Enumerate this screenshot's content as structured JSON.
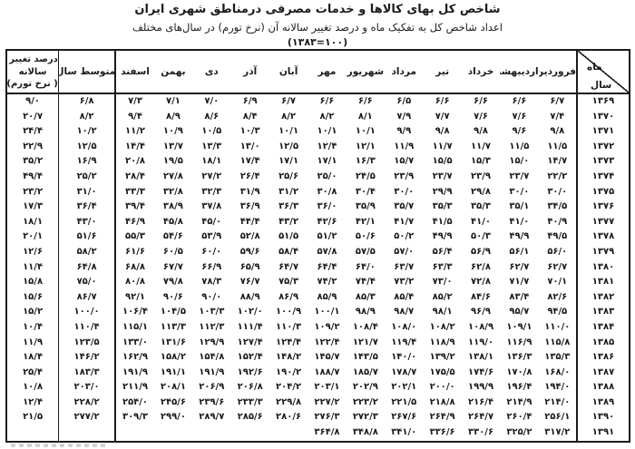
{
  "title": {
    "line1": "شاخص کل بهای کالاها و خدمات مصرفی درمناطق شهری ایران",
    "line2": "اعداد شاخص کل به تفکیک ماه و درصد تغییر سالانه آن (نرخ تورم) در سال‌های مختلف",
    "line3": "(۱۳۸۳=۱۰۰)"
  },
  "table": {
    "corner": {
      "month_label": "ماه",
      "year_label": "سال"
    },
    "months": [
      "فروردین",
      "اردیبهشت",
      "خرداد",
      "تیر",
      "مرداد",
      "شهریور",
      "مهر",
      "آبان",
      "آذر",
      "دی",
      "بهمن",
      "اسفند"
    ],
    "avg_header": "متوسط سال",
    "pct_header": {
      "line1": "درصد تغییر",
      "star": "*",
      "line2": "سالانه",
      "line3": "( نرخ تورم)"
    },
    "rows": [
      {
        "year": "۱۳۶۹",
        "months": [
          "۶/۷",
          "۶/۶",
          "۶/۶",
          "۶/۶",
          "۶/۵",
          "۶/۶",
          "۶/۶",
          "۶/۷",
          "۶/۹",
          "۷/۰",
          "۷/۱",
          "۷/۳"
        ],
        "avg": "۶/۸",
        "pct": "۹/۰"
      },
      {
        "year": "۱۳۷۰",
        "months": [
          "۷/۴",
          "۷/۶",
          "۷/۶",
          "۷/۷",
          "۷/۹",
          "۸/۱",
          "۸/۲",
          "۸/۲",
          "۸/۴",
          "۸/۶",
          "۸/۹",
          "۹/۴"
        ],
        "avg": "۸/۲",
        "pct": "۲۰/۷"
      },
      {
        "year": "۱۳۷۱",
        "months": [
          "۹/۸",
          "۹/۶",
          "۹/۸",
          "۹/۸",
          "۹/۹",
          "۱۰/۱",
          "۱۰/۱",
          "۱۰/۱",
          "۱۰/۳",
          "۱۰/۵",
          "۱۰/۹",
          "۱۱/۲"
        ],
        "avg": "۱۰/۲",
        "pct": "۲۴/۴"
      },
      {
        "year": "۱۳۷۲",
        "months": [
          "۱۱/۵",
          "۱۱/۵",
          "۱۱/۷",
          "۱۱/۷",
          "۱۱/۹",
          "۱۲/۱",
          "۱۲/۴",
          "۱۲/۵",
          "۱۳/۰",
          "۱۳/۳",
          "۱۳/۷",
          "۱۴/۴"
        ],
        "avg": "۱۲/۵",
        "pct": "۲۲/۹"
      },
      {
        "year": "۱۳۷۳",
        "months": [
          "۱۴/۷",
          "۱۵/۰",
          "۱۵/۳",
          "۱۵/۵",
          "۱۵/۷",
          "۱۶/۳",
          "۱۷/۱",
          "۱۷/۱",
          "۱۷/۴",
          "۱۸/۱",
          "۱۹/۵",
          "۲۰/۸"
        ],
        "avg": "۱۶/۹",
        "pct": "۳۵/۲"
      },
      {
        "year": "۱۳۷۴",
        "months": [
          "۲۲/۲",
          "۲۳/۷",
          "۲۳/۹",
          "۲۳/۷",
          "۲۳/۹",
          "۲۴/۵",
          "۲۵/۰",
          "۲۵/۶",
          "۲۶/۴",
          "۲۷/۲",
          "۲۷/۸",
          "۲۸/۴"
        ],
        "avg": "۲۵/۲",
        "pct": "۴۹/۴"
      },
      {
        "year": "۱۳۷۵",
        "months": [
          "۳۰/۰",
          "۳۰/۰",
          "۲۹/۸",
          "۲۹/۹",
          "۳۰/۰",
          "۳۰/۴",
          "۳۰/۸",
          "۳۱/۲",
          "۳۱/۹",
          "۳۲/۳",
          "۳۲/۸",
          "۳۳/۳"
        ],
        "avg": "۳۱/۰",
        "pct": "۲۳/۲"
      },
      {
        "year": "۱۳۷۶",
        "months": [
          "۳۴/۵",
          "۳۵/۱",
          "۳۵/۳",
          "۳۵/۳",
          "۳۵/۷",
          "۳۵/۹",
          "۳۶/۰",
          "۳۶/۳",
          "۳۶/۹",
          "۳۷/۸",
          "۳۸/۹",
          "۳۹/۴"
        ],
        "avg": "۳۶/۴",
        "pct": "۱۷/۳"
      },
      {
        "year": "۱۳۷۷",
        "months": [
          "۴۰/۹",
          "۴۱/۰",
          "۴۱/۰",
          "۴۱/۵",
          "۴۱/۷",
          "۴۲/۱",
          "۴۲/۶",
          "۴۳/۲",
          "۴۴/۴",
          "۴۵/۰",
          "۴۵/۸",
          "۴۶/۹"
        ],
        "avg": "۴۳/۰",
        "pct": "۱۸/۱"
      },
      {
        "year": "۱۳۷۸",
        "months": [
          "۴۹/۵",
          "۴۹/۹",
          "۵۰/۳",
          "۴۹/۹",
          "۵۰/۲",
          "۵۰/۶",
          "۵۱/۲",
          "۵۱/۵",
          "۵۲/۸",
          "۵۳/۹",
          "۵۴/۶",
          "۵۵/۳"
        ],
        "avg": "۵۱/۶",
        "pct": "۲۰/۱"
      },
      {
        "year": "۱۳۷۹",
        "months": [
          "۵۶/۰",
          "۵۶/۱",
          "۵۶/۹",
          "۵۶/۴",
          "۵۷/۰",
          "۵۷/۵",
          "۵۷/۸",
          "۵۸/۴",
          "۵۹/۶",
          "۶۰/۰",
          "۶۰/۵",
          "۶۱/۶"
        ],
        "avg": "۵۸/۲",
        "pct": "۱۲/۶"
      },
      {
        "year": "۱۳۸۰",
        "months": [
          "۶۲/۷",
          "۶۲/۷",
          "۶۲/۸",
          "۶۳/۳",
          "۶۳/۷",
          "۶۴/۰",
          "۶۴/۴",
          "۶۴/۷",
          "۶۵/۹",
          "۶۶/۹",
          "۶۷/۷",
          "۶۸/۸"
        ],
        "avg": "۶۴/۸",
        "pct": "۱۱/۴"
      },
      {
        "year": "۱۳۸۱",
        "months": [
          "۷۰/۱",
          "۷۱/۷",
          "۷۲/۸",
          "۷۳/۰",
          "۷۳/۲",
          "۷۴/۴",
          "۷۴/۲",
          "۷۵/۳",
          "۷۶/۷",
          "۷۸/۳",
          "۷۹/۸",
          "۸۰/۸"
        ],
        "avg": "۷۵/۰",
        "pct": "۱۵/۸"
      },
      {
        "year": "۱۳۸۲",
        "months": [
          "۸۲/۶",
          "۸۳/۴",
          "۸۴/۶",
          "۸۵/۲",
          "۸۵/۴",
          "۸۵/۳",
          "۸۵/۹",
          "۸۶/۹",
          "۸۸/۹",
          "۹۰/۰",
          "۹۰/۶",
          "۹۲/۱"
        ],
        "avg": "۸۶/۷",
        "pct": "۱۵/۶"
      },
      {
        "year": "۱۳۸۳",
        "months": [
          "۹۴/۵",
          "۹۵/۷",
          "۹۶/۹",
          "۹۸/۱",
          "۹۸/۷",
          "۹۸/۹",
          "۱۰۰/۱",
          "۱۰۰/۹",
          "۱۰۲/۰",
          "۱۰۳/۳",
          "۱۰۴/۵",
          "۱۰۶/۴"
        ],
        "avg": "۱۰۰/۰",
        "pct": "۱۵/۲"
      },
      {
        "year": "۱۳۸۴",
        "months": [
          "۱۱۰/۰",
          "۱۰۹/۱",
          "۱۰۸/۹",
          "۱۰۸/۲",
          "۱۰۸/۰",
          "۱۰۸/۴",
          "۱۰۹/۲",
          "۱۱۰/۳",
          "۱۱۱/۴",
          "۱۱۲/۳",
          "۱۱۳/۳",
          "۱۱۵/۱"
        ],
        "avg": "۱۱۰/۴",
        "pct": "۱۰/۴"
      },
      {
        "year": "۱۳۸۵",
        "months": [
          "۱۱۵/۸",
          "۱۱۶/۹",
          "۱۱۹/۰",
          "۱۱۸/۹",
          "۱۱۹/۴",
          "۱۲۱/۷",
          "۱۲۲/۴",
          "۱۲۴/۴",
          "۱۲۷/۴",
          "۱۲۹/۹",
          "۱۳۱/۶",
          "۱۳۳/۰"
        ],
        "avg": "۱۲۳/۵",
        "pct": "۱۱/۹"
      },
      {
        "year": "۱۳۸۶",
        "months": [
          "۱۳۵/۳",
          "۱۳۶/۳",
          "۱۳۸/۱",
          "۱۳۹/۲",
          "۱۴۰/۰",
          "۱۴۳/۵",
          "۱۴۵/۷",
          "۱۴۸/۲",
          "۱۵۲/۴",
          "۱۵۴/۸",
          "۱۵۸/۲",
          "۱۶۲/۹"
        ],
        "avg": "۱۴۶/۲",
        "pct": "۱۸/۴"
      },
      {
        "year": "۱۳۸۷",
        "months": [
          "۱۶۸/۰",
          "۱۷۰/۸",
          "۱۷۴/۶",
          "۱۷۵/۵",
          "۱۷۸/۷",
          "۱۸۵/۷",
          "۱۸۸/۷",
          "۱۹۰/۲",
          "۱۹۲/۶",
          "۱۹۱/۹",
          "۱۹۱/۱",
          "۱۹۱/۹"
        ],
        "avg": "۱۸۳/۳",
        "pct": "۲۵/۴"
      },
      {
        "year": "۱۳۸۸",
        "months": [
          "۱۹۴/۰",
          "۱۹۶/۴",
          "۱۹۹/۹",
          "۲۰۰/۰",
          "۲۰۲/۱",
          "۲۰۲/۹",
          "۲۰۳/۱",
          "۲۰۴/۲",
          "۲۰۶/۸",
          "۲۰۶/۹",
          "۲۰۸/۱",
          "۲۱۱/۹"
        ],
        "avg": "۲۰۳/۰",
        "pct": "۱۰/۸"
      },
      {
        "year": "۱۳۸۹",
        "months": [
          "۲۱۴/۰",
          "۲۱۴/۹",
          "۲۱۶/۴",
          "۲۱۸/۸",
          "۲۲۱/۵",
          "۲۲۳/۲",
          "۲۲۷/۲",
          "۲۲۹/۸",
          "۲۳۳/۳",
          "۲۳۹/۶",
          "۲۴۵/۶",
          "۲۵۴/۰"
        ],
        "avg": "۲۲۸/۲",
        "pct": "۱۲/۴"
      },
      {
        "year": "۱۳۹۰",
        "months": [
          "۲۵۶/۱",
          "۲۶۰/۴",
          "۲۶۴/۷",
          "۲۶۴/۹",
          "۲۶۷/۶",
          "۲۷۲/۳",
          "۲۷۶/۳",
          "۲۸۰/۶",
          "۲۸۵/۶",
          "۲۸۹/۷",
          "۲۹۹/۰",
          "۳۰۹/۳"
        ],
        "avg": "۲۷۷/۲",
        "pct": "۲۱/۵"
      },
      {
        "year": "۱۳۹۱",
        "months": [
          "۳۱۷/۲",
          "۳۲۵/۲",
          "۳۳۰/۶",
          "۳۳۶/۶",
          "۳۴۱/۰",
          "۳۴۸/۸",
          "۳۶۴/۸",
          "",
          "",
          "",
          "",
          ""
        ],
        "avg": "",
        "pct": ""
      }
    ]
  }
}
